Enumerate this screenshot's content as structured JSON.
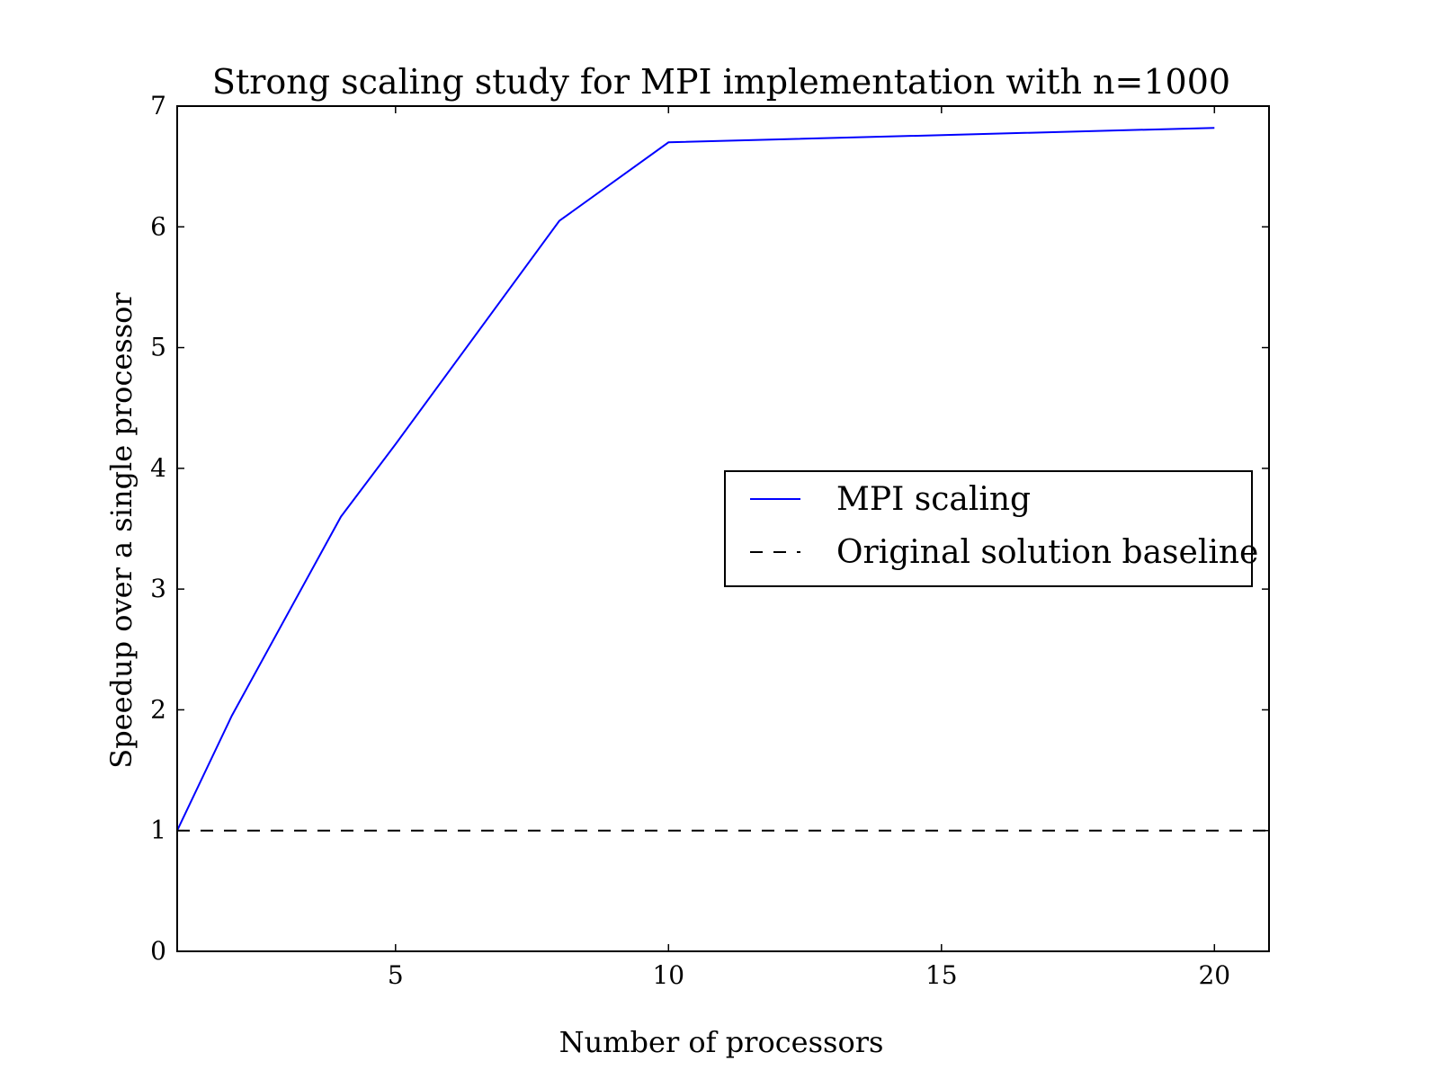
{
  "chart_data": {
    "type": "line",
    "title": "Strong scaling study for MPI implementation with n=1000",
    "xlabel": "Number of processors",
    "ylabel": "Speedup over a single processor",
    "xlim": [
      1,
      21
    ],
    "ylim": [
      0,
      7
    ],
    "xticks": [
      5,
      10,
      15,
      20
    ],
    "yticks": [
      0,
      1,
      2,
      3,
      4,
      5,
      6,
      7
    ],
    "grid": false,
    "legend_position": "center-right",
    "series": [
      {
        "name": "MPI scaling",
        "color": "#0000ff",
        "style": "solid",
        "x": [
          1,
          2,
          4,
          5,
          8,
          10,
          20
        ],
        "y": [
          1.0,
          1.95,
          3.6,
          4.2,
          6.05,
          6.7,
          6.82
        ]
      },
      {
        "name": "Original solution baseline",
        "color": "#000000",
        "style": "dashed",
        "x": [
          1,
          21
        ],
        "y": [
          1.0,
          1.0
        ]
      }
    ]
  }
}
